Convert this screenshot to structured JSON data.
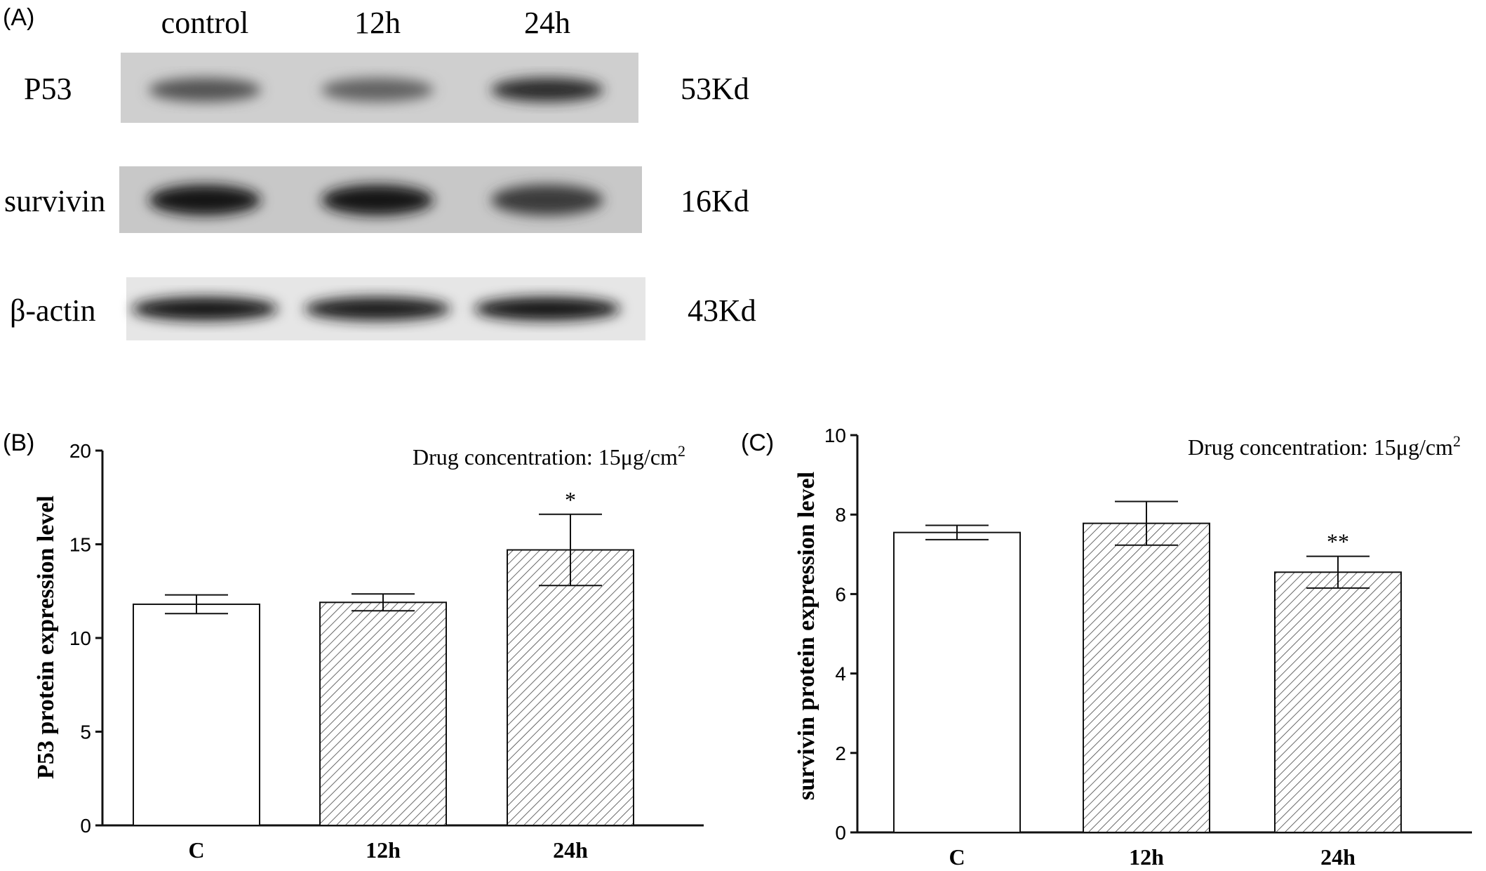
{
  "panel_a": {
    "label": "(A)",
    "lanes": [
      "control",
      "12h",
      "24h"
    ],
    "blots": [
      {
        "protein": "P53",
        "size": "53Kd",
        "intensities": [
          0.55,
          0.45,
          0.8
        ]
      },
      {
        "protein": "survivin",
        "size": "16Kd",
        "intensities": [
          0.95,
          0.95,
          0.7
        ]
      },
      {
        "protein": "β-actin",
        "size": "43Kd",
        "intensities": [
          0.95,
          0.9,
          0.95
        ]
      }
    ]
  },
  "chart_data": [
    {
      "panel": "(B)",
      "type": "bar",
      "categories": [
        "C",
        "12h",
        "24h"
      ],
      "values": [
        11.8,
        11.9,
        14.7
      ],
      "errors": [
        0.5,
        0.45,
        1.9
      ],
      "significance": [
        "",
        "",
        "*"
      ],
      "patterns": [
        "none",
        "hatch",
        "hatch"
      ],
      "ylabel": "P53 protein expression level",
      "ylim": [
        0,
        20
      ],
      "yticks": [
        0,
        5,
        10,
        15,
        20
      ],
      "annotation": "Drug concentration: 15μg/cm",
      "annotation_sup": "2"
    },
    {
      "panel": "(C)",
      "type": "bar",
      "categories": [
        "C",
        "12h",
        "24h"
      ],
      "values": [
        7.55,
        7.78,
        6.55
      ],
      "errors": [
        0.18,
        0.55,
        0.4
      ],
      "significance": [
        "",
        "",
        "**"
      ],
      "patterns": [
        "none",
        "hatch",
        "hatch"
      ],
      "ylabel": "survivin protein expression level",
      "ylim": [
        0,
        10
      ],
      "yticks": [
        0,
        2,
        4,
        6,
        8,
        10
      ],
      "annotation": "Drug concentration: 15μg/cm",
      "annotation_sup": "2"
    }
  ]
}
